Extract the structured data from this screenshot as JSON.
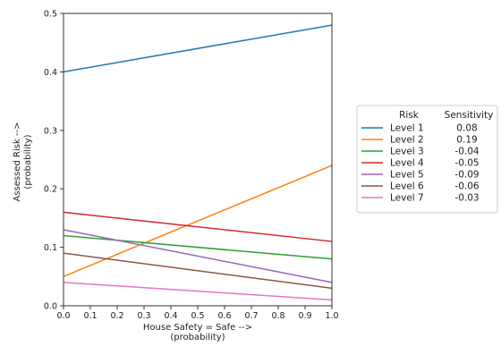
{
  "chart_data": {
    "type": "line",
    "xlabel": "House Safety = Safe -->",
    "xlabel_sub": "(probability)",
    "ylabel": "Assessed Risk -->",
    "ylabel_sub": "(probability)",
    "xlim": [
      0.0,
      1.0
    ],
    "ylim": [
      0.0,
      0.5
    ],
    "xticks": [
      0.0,
      0.1,
      0.2,
      0.3,
      0.4,
      0.5,
      0.6,
      0.7,
      0.8,
      0.9,
      1.0
    ],
    "xtick_labels": [
      "0.0",
      "0.1",
      "0.2",
      "0.3",
      "0.4",
      "0.5",
      "0.6",
      "0.7",
      "0.8",
      "0.9",
      "1.0"
    ],
    "yticks": [
      0.0,
      0.1,
      0.2,
      0.3,
      0.4,
      0.5
    ],
    "ytick_labels": [
      "0.0",
      "0.1",
      "0.2",
      "0.3",
      "0.4",
      "0.5"
    ],
    "grid": false,
    "legend_placement": "outside-right",
    "legend_headers": {
      "name": "Risk",
      "value": "Sensitivity"
    },
    "x": [
      0.0,
      1.0
    ],
    "series": [
      {
        "name": "Level 1",
        "sensitivity": "0.08",
        "color": "#1f77b4",
        "values": [
          0.4,
          0.48
        ]
      },
      {
        "name": "Level 2",
        "sensitivity": "0.19",
        "color": "#ff7f0e",
        "values": [
          0.05,
          0.24
        ]
      },
      {
        "name": "Level 3",
        "sensitivity": "-0.04",
        "color": "#2ca02c",
        "values": [
          0.12,
          0.08
        ]
      },
      {
        "name": "Level 4",
        "sensitivity": "-0.05",
        "color": "#d62728",
        "values": [
          0.16,
          0.11
        ]
      },
      {
        "name": "Level 5",
        "sensitivity": "-0.09",
        "color": "#9467bd",
        "values": [
          0.13,
          0.04
        ]
      },
      {
        "name": "Level 6",
        "sensitivity": "-0.06",
        "color": "#8c564b",
        "values": [
          0.09,
          0.03
        ]
      },
      {
        "name": "Level 7",
        "sensitivity": "-0.03",
        "color": "#e377c2",
        "values": [
          0.04,
          0.01
        ]
      }
    ]
  }
}
